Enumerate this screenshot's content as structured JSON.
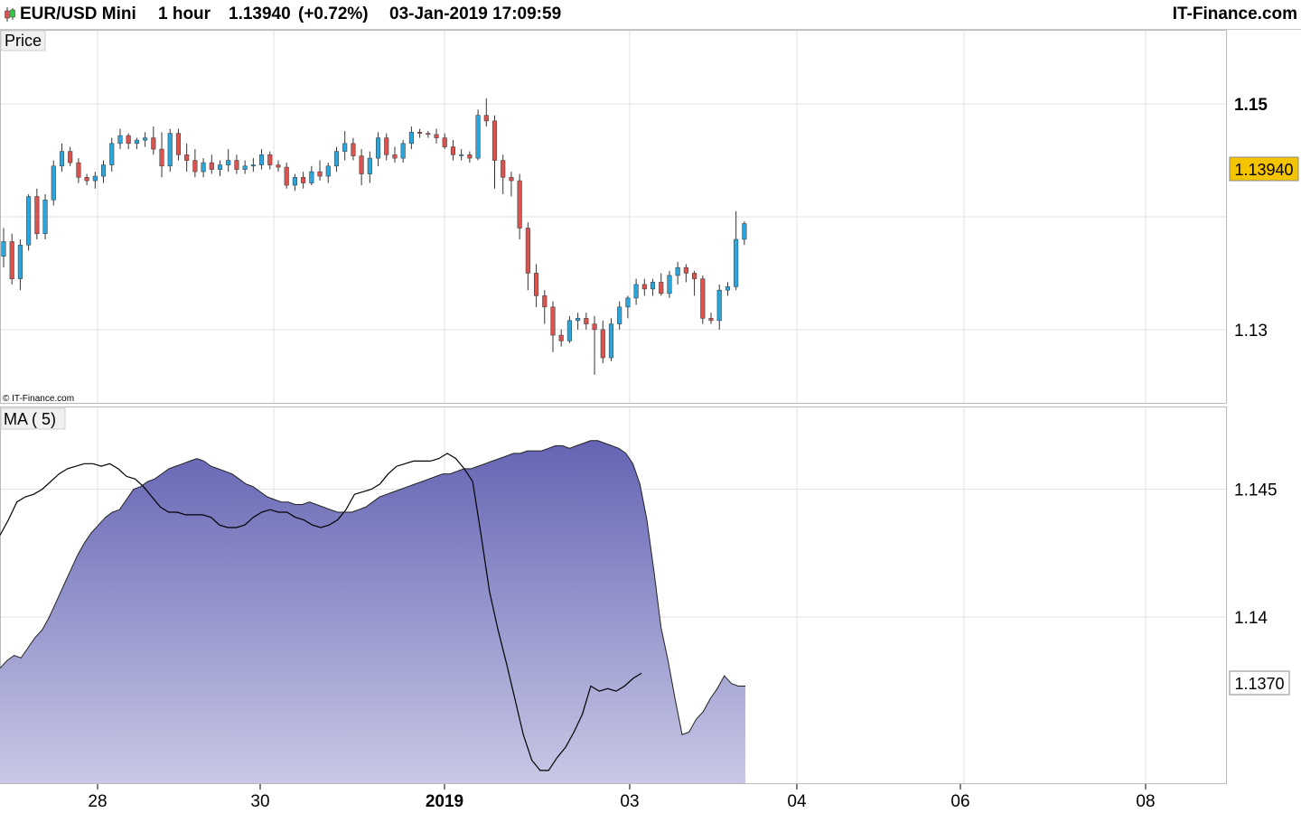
{
  "header": {
    "instrument": "EUR/USD Mini",
    "interval": "1 hour",
    "price": "1.13940",
    "change": "(+0.72%)",
    "datetime": "03-Jan-2019 17:09:59",
    "brand": "IT-Finance.com"
  },
  "colors": {
    "up_candle": "#2aa6dc",
    "down_candle": "#d9534f",
    "ma_fill_top": "#6464b4",
    "ma_fill_bottom": "#c8c8e6",
    "grid": "#e2e2e2",
    "current_price_bg": "#f5c400"
  },
  "price_panel": {
    "label": "Price",
    "watermark": "© IT-Finance.com",
    "y_ticks": [
      {
        "value": 1.15,
        "label": "1.15",
        "bold": true
      },
      {
        "value": 1.13,
        "label": "1.13",
        "bold": false
      }
    ],
    "current_price_label": "1.13940"
  },
  "ma_panel": {
    "label": "MA ( 5)",
    "y_ticks": [
      {
        "value": 1.145,
        "label": "1.145"
      },
      {
        "value": 1.14,
        "label": "1.14"
      }
    ],
    "current_value_label": "1.1370"
  },
  "x_axis": {
    "ticks": [
      {
        "label": "28",
        "bold": false
      },
      {
        "label": "30",
        "bold": false
      },
      {
        "label": "2019",
        "bold": true
      },
      {
        "label": "03",
        "bold": false
      },
      {
        "label": "04",
        "bold": false
      },
      {
        "label": "06",
        "bold": false
      },
      {
        "label": "08",
        "bold": false
      }
    ]
  },
  "chart_data": [
    {
      "type": "candlestick",
      "title": "EUR/USD Mini 1 hour",
      "ylim": [
        1.1235,
        1.1565
      ],
      "ohlc": [
        [
          1.1365,
          1.139,
          1.1355,
          1.1378
        ],
        [
          1.1378,
          1.1385,
          1.134,
          1.1345
        ],
        [
          1.1345,
          1.138,
          1.1335,
          1.1375
        ],
        [
          1.1375,
          1.142,
          1.137,
          1.1418
        ],
        [
          1.1418,
          1.1425,
          1.138,
          1.1385
        ],
        [
          1.1385,
          1.142,
          1.138,
          1.1415
        ],
        [
          1.1415,
          1.145,
          1.141,
          1.1445
        ],
        [
          1.1445,
          1.1465,
          1.144,
          1.1458
        ],
        [
          1.1458,
          1.1462,
          1.1445,
          1.1448
        ],
        [
          1.1448,
          1.1452,
          1.143,
          1.1435
        ],
        [
          1.1435,
          1.1438,
          1.1428,
          1.1432
        ],
        [
          1.1432,
          1.144,
          1.1425,
          1.1436
        ],
        [
          1.1436,
          1.145,
          1.143,
          1.1446
        ],
        [
          1.1446,
          1.147,
          1.144,
          1.1465
        ],
        [
          1.1465,
          1.1478,
          1.146,
          1.1472
        ],
        [
          1.1472,
          1.1474,
          1.146,
          1.1465
        ],
        [
          1.1465,
          1.147,
          1.146,
          1.1468
        ],
        [
          1.1468,
          1.1475,
          1.1462,
          1.147
        ],
        [
          1.147,
          1.148,
          1.1455,
          1.146
        ],
        [
          1.146,
          1.1475,
          1.1435,
          1.1445
        ],
        [
          1.1445,
          1.1478,
          1.144,
          1.1474
        ],
        [
          1.1474,
          1.1478,
          1.145,
          1.1455
        ],
        [
          1.1455,
          1.1465,
          1.144,
          1.145
        ],
        [
          1.145,
          1.146,
          1.1435,
          1.144
        ],
        [
          1.144,
          1.1452,
          1.1435,
          1.1448
        ],
        [
          1.1448,
          1.1455,
          1.1438,
          1.1442
        ],
        [
          1.1442,
          1.145,
          1.1436,
          1.1446
        ],
        [
          1.1446,
          1.146,
          1.144,
          1.145
        ],
        [
          1.145,
          1.1455,
          1.1438,
          1.1442
        ],
        [
          1.1442,
          1.145,
          1.1438,
          1.1445
        ],
        [
          1.1445,
          1.1452,
          1.144,
          1.1446
        ],
        [
          1.1446,
          1.146,
          1.1442,
          1.1455
        ],
        [
          1.1455,
          1.1458,
          1.1442,
          1.1446
        ],
        [
          1.1446,
          1.145,
          1.144,
          1.1444
        ],
        [
          1.1444,
          1.1448,
          1.1425,
          1.1428
        ],
        [
          1.1428,
          1.1438,
          1.1423,
          1.1435
        ],
        [
          1.1435,
          1.144,
          1.1425,
          1.143
        ],
        [
          1.143,
          1.1445,
          1.1428,
          1.144
        ],
        [
          1.144,
          1.145,
          1.1432,
          1.1436
        ],
        [
          1.1436,
          1.1448,
          1.143,
          1.1445
        ],
        [
          1.1445,
          1.1462,
          1.144,
          1.1458
        ],
        [
          1.1458,
          1.1476,
          1.145,
          1.1465
        ],
        [
          1.1465,
          1.147,
          1.145,
          1.1454
        ],
        [
          1.1454,
          1.146,
          1.1428,
          1.1438
        ],
        [
          1.1438,
          1.1458,
          1.143,
          1.1452
        ],
        [
          1.1452,
          1.1475,
          1.1445,
          1.147
        ],
        [
          1.147,
          1.1474,
          1.145,
          1.1455
        ],
        [
          1.1455,
          1.1462,
          1.1448,
          1.1452
        ],
        [
          1.1452,
          1.1468,
          1.1448,
          1.1465
        ],
        [
          1.1465,
          1.148,
          1.146,
          1.1475
        ],
        [
          1.1475,
          1.1478,
          1.147,
          1.1474
        ],
        [
          1.1474,
          1.1476,
          1.147,
          1.1473
        ],
        [
          1.1473,
          1.1478,
          1.1465,
          1.147
        ],
        [
          1.147,
          1.1474,
          1.146,
          1.1462
        ],
        [
          1.1462,
          1.1468,
          1.145,
          1.1455
        ],
        [
          1.1455,
          1.146,
          1.145,
          1.1455
        ],
        [
          1.1455,
          1.1458,
          1.1448,
          1.1452
        ],
        [
          1.1452,
          1.1495,
          1.145,
          1.149
        ],
        [
          1.149,
          1.1505,
          1.148,
          1.1485
        ],
        [
          1.1485,
          1.149,
          1.1425,
          1.145
        ],
        [
          1.145,
          1.1455,
          1.142,
          1.1435
        ],
        [
          1.1435,
          1.144,
          1.1418,
          1.1432
        ],
        [
          1.1432,
          1.1438,
          1.138,
          1.139
        ],
        [
          1.139,
          1.1395,
          1.1335,
          1.135
        ],
        [
          1.135,
          1.1358,
          1.132,
          1.133
        ],
        [
          1.133,
          1.1335,
          1.1305,
          1.132
        ],
        [
          1.132,
          1.1325,
          1.128,
          1.1295
        ],
        [
          1.1295,
          1.13,
          1.1285,
          1.129
        ],
        [
          1.129,
          1.1312,
          1.1288,
          1.1308
        ],
        [
          1.1308,
          1.1315,
          1.13,
          1.131
        ],
        [
          1.131,
          1.1315,
          1.13,
          1.1305
        ],
        [
          1.1305,
          1.1312,
          1.126,
          1.13
        ],
        [
          1.13,
          1.1308,
          1.127,
          1.1275
        ],
        [
          1.1275,
          1.131,
          1.1272,
          1.1305
        ],
        [
          1.1305,
          1.1325,
          1.13,
          1.132
        ],
        [
          1.132,
          1.133,
          1.131,
          1.1328
        ],
        [
          1.1328,
          1.1345,
          1.1322,
          1.134
        ],
        [
          1.134,
          1.1345,
          1.133,
          1.1336
        ],
        [
          1.1336,
          1.1345,
          1.133,
          1.1342
        ],
        [
          1.1342,
          1.135,
          1.133,
          1.1332
        ],
        [
          1.1332,
          1.1352,
          1.1328,
          1.1348
        ],
        [
          1.1348,
          1.136,
          1.134,
          1.1355
        ],
        [
          1.1355,
          1.1358,
          1.1342,
          1.135
        ],
        [
          1.135,
          1.1352,
          1.133,
          1.1345
        ],
        [
          1.1345,
          1.1348,
          1.1305,
          1.131
        ],
        [
          1.131,
          1.1315,
          1.1305,
          1.1308
        ],
        [
          1.1308,
          1.134,
          1.13,
          1.1335
        ],
        [
          1.1335,
          1.1342,
          1.133,
          1.1338
        ],
        [
          1.1338,
          1.1405,
          1.1335,
          1.138
        ],
        [
          1.138,
          1.1396,
          1.1375,
          1.1394
        ]
      ]
    },
    {
      "type": "area",
      "title": "MA ( 5)",
      "ylim": [
        1.1335,
        1.1482
      ],
      "series": [
        {
          "values": [
            1.138,
            1.1383,
            1.1385,
            1.1384,
            1.1388,
            1.1392,
            1.1395,
            1.14,
            1.1406,
            1.1412,
            1.1418,
            1.1424,
            1.1429,
            1.1433,
            1.1436,
            1.1439,
            1.1441,
            1.1442,
            1.1446,
            1.145,
            1.1451,
            1.1453,
            1.1454,
            1.1456,
            1.1458,
            1.1459,
            1.146,
            1.1461,
            1.1462,
            1.1461,
            1.1459,
            1.1458,
            1.1457,
            1.1456,
            1.1454,
            1.1452,
            1.1451,
            1.1449,
            1.1447,
            1.1446,
            1.1445,
            1.1445,
            1.1444,
            1.1444,
            1.1445,
            1.1444,
            1.1443,
            1.1442,
            1.1441,
            1.1441,
            1.1441,
            1.1442,
            1.1443,
            1.1445,
            1.1447,
            1.1448,
            1.1449,
            1.145,
            1.1451,
            1.1452,
            1.1453,
            1.1454,
            1.1455,
            1.1456,
            1.1456,
            1.1457,
            1.1458,
            1.1458,
            1.1459,
            1.146,
            1.1461,
            1.1462,
            1.1463,
            1.1464,
            1.1464,
            1.1465,
            1.1465,
            1.1465,
            1.1466,
            1.1467,
            1.1467,
            1.1466,
            1.1467,
            1.1468,
            1.1469,
            1.1469,
            1.1468,
            1.1467,
            1.1466,
            1.1464,
            1.146,
            1.1452,
            1.1438,
            1.1418,
            1.1396,
            1.1383,
            1.1368,
            1.1354,
            1.1355,
            1.136,
            1.1363,
            1.1368,
            1.1372,
            1.1377,
            1.1374,
            1.1373,
            1.1373
          ]
        },
        {
          "values": [
            1.1432,
            1.1438,
            1.1445,
            1.1447,
            1.1448,
            1.145,
            1.1453,
            1.1456,
            1.1458,
            1.1459,
            1.146,
            1.146,
            1.1459,
            1.146,
            1.1458,
            1.1455,
            1.1454,
            1.1451,
            1.1447,
            1.1443,
            1.1441,
            1.1441,
            1.144,
            1.144,
            1.144,
            1.1439,
            1.1436,
            1.1435,
            1.1435,
            1.1436,
            1.1439,
            1.1441,
            1.1442,
            1.1441,
            1.1441,
            1.1439,
            1.1438,
            1.1436,
            1.1435,
            1.1436,
            1.1438,
            1.1442,
            1.1448,
            1.1449,
            1.145,
            1.1452,
            1.1456,
            1.1459,
            1.146,
            1.1461,
            1.1461,
            1.1461,
            1.1462,
            1.1464,
            1.1462,
            1.1458,
            1.1453,
            1.1432,
            1.141,
            1.1395,
            1.1382,
            1.1368,
            1.1354,
            1.1344,
            1.134,
            1.134,
            1.1345,
            1.1349,
            1.1355,
            1.1362,
            1.1373,
            1.1371,
            1.1372,
            1.1371,
            1.1373,
            1.1376,
            1.1378
          ]
        }
      ]
    }
  ]
}
